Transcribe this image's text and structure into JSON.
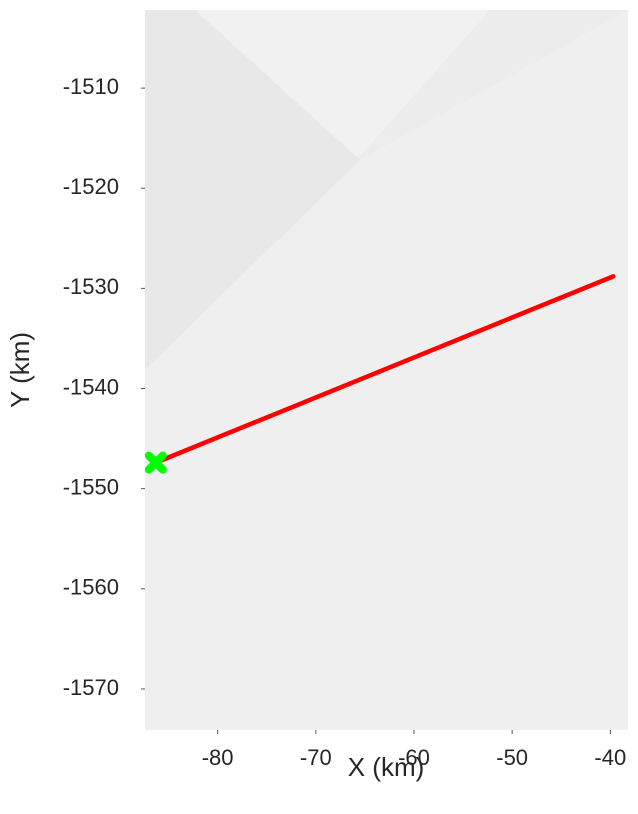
{
  "chart_data": {
    "type": "line",
    "x_label": "X (km)",
    "y_label": "Y (km)",
    "series": [
      {
        "color": "#ff0000",
        "x": [
          -86.3,
          -39.7
        ],
        "values": [
          -1547.4,
          -1528.8
        ]
      }
    ],
    "marker": {
      "x": -86.3,
      "y": -1547.4,
      "color": "#00ff00"
    },
    "xlim": [
      -87.4,
      -38.2
    ],
    "ylim": [
      -1574.1,
      -1502.2
    ],
    "xticks": [
      -80,
      -70,
      -60,
      -50,
      -40
    ],
    "yticks": [
      -1510,
      -1520,
      -1530,
      -1540,
      -1550,
      -1560,
      -1570
    ]
  }
}
